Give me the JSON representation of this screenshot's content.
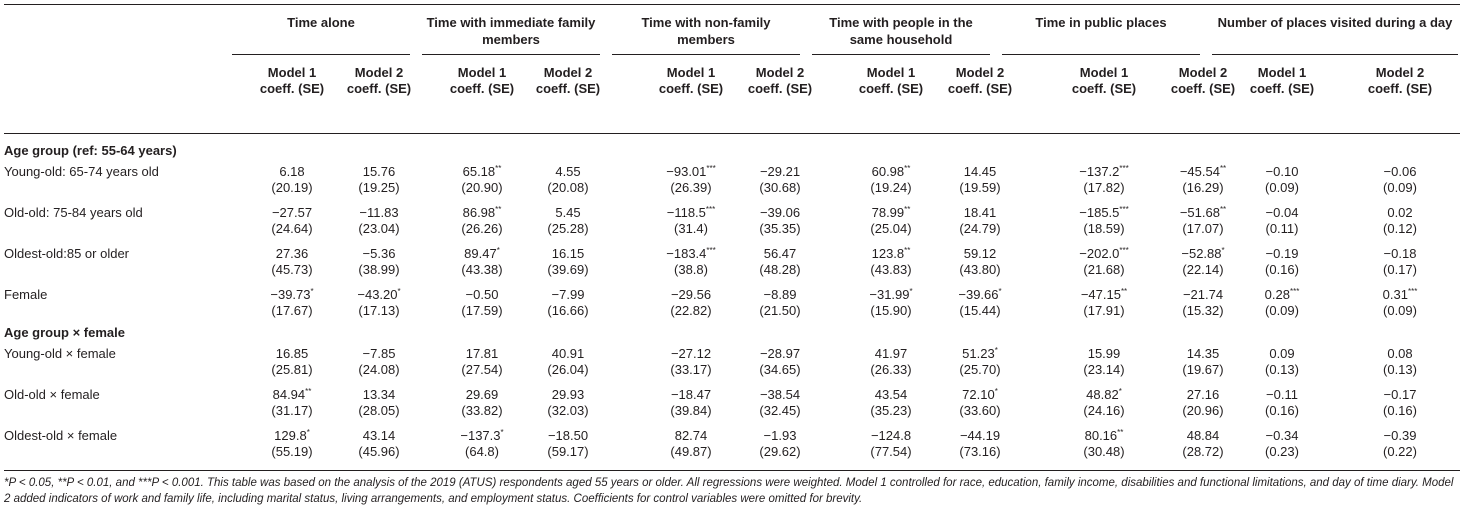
{
  "groups": [
    {
      "label": "Time alone"
    },
    {
      "label": "Time with immediate family members"
    },
    {
      "label": "Time with non-family members"
    },
    {
      "label": "Time with people in the same household"
    },
    {
      "label": "Time in public places"
    },
    {
      "label": "Number of places visited during a day"
    }
  ],
  "model_labels": [
    "Model 1 coeff. (SE)",
    "Model 2 coeff. (SE)"
  ],
  "sections": [
    {
      "title": "Age group (ref: 55-64 years)",
      "rows": [
        {
          "label": "Young-old: 65-74 years old",
          "cells": [
            {
              "c": "6.18",
              "s": "",
              "se": "(20.19)"
            },
            {
              "c": "15.76",
              "s": "",
              "se": "(19.25)"
            },
            {
              "c": "65.18",
              "s": "**",
              "se": "(20.90)"
            },
            {
              "c": "4.55",
              "s": "",
              "se": "(20.08)"
            },
            {
              "c": "−93.01",
              "s": "***",
              "se": "(26.39)"
            },
            {
              "c": "−29.21",
              "s": "",
              "se": "(30.68)"
            },
            {
              "c": "60.98",
              "s": "**",
              "se": "(19.24)"
            },
            {
              "c": "14.45",
              "s": "",
              "se": "(19.59)"
            },
            {
              "c": "−137.2",
              "s": "***",
              "se": "(17.82)"
            },
            {
              "c": "−45.54",
              "s": "**",
              "se": "(16.29)"
            },
            {
              "c": "−0.10",
              "s": "",
              "se": "(0.09)"
            },
            {
              "c": "−0.06",
              "s": "",
              "se": "(0.09)"
            }
          ]
        },
        {
          "label": "Old-old: 75-84 years old",
          "cells": [
            {
              "c": "−27.57",
              "s": "",
              "se": "(24.64)"
            },
            {
              "c": "−11.83",
              "s": "",
              "se": "(23.04)"
            },
            {
              "c": "86.98",
              "s": "**",
              "se": "(26.26)"
            },
            {
              "c": "5.45",
              "s": "",
              "se": "(25.28)"
            },
            {
              "c": "−118.5",
              "s": "***",
              "se": "(31.4)"
            },
            {
              "c": "−39.06",
              "s": "",
              "se": "(35.35)"
            },
            {
              "c": "78.99",
              "s": "**",
              "se": "(25.04)"
            },
            {
              "c": "18.41",
              "s": "",
              "se": "(24.79)"
            },
            {
              "c": "−185.5",
              "s": "***",
              "se": "(18.59)"
            },
            {
              "c": "−51.68",
              "s": "**",
              "se": "(17.07)"
            },
            {
              "c": "−0.04",
              "s": "",
              "se": "(0.11)"
            },
            {
              "c": "0.02",
              "s": "",
              "se": "(0.12)"
            }
          ]
        },
        {
          "label": "Oldest-old:85 or older",
          "cells": [
            {
              "c": "27.36",
              "s": "",
              "se": "(45.73)"
            },
            {
              "c": "−5.36",
              "s": "",
              "se": "(38.99)"
            },
            {
              "c": "89.47",
              "s": "*",
              "se": "(43.38)"
            },
            {
              "c": "16.15",
              "s": "",
              "se": "(39.69)"
            },
            {
              "c": "−183.4",
              "s": "***",
              "se": "(38.8)"
            },
            {
              "c": "56.47",
              "s": "",
              "se": "(48.28)"
            },
            {
              "c": "123.8",
              "s": "**",
              "se": "(43.83)"
            },
            {
              "c": "59.12",
              "s": "",
              "se": "(43.80)"
            },
            {
              "c": "−202.0",
              "s": "***",
              "se": "(21.68)"
            },
            {
              "c": "−52.88",
              "s": "*",
              "se": "(22.14)"
            },
            {
              "c": "−0.19",
              "s": "",
              "se": "(0.16)"
            },
            {
              "c": "−0.18",
              "s": "",
              "se": "(0.17)"
            }
          ]
        },
        {
          "label": "Female",
          "cells": [
            {
              "c": "−39.73",
              "s": "*",
              "se": "(17.67)"
            },
            {
              "c": "−43.20",
              "s": "*",
              "se": "(17.13)"
            },
            {
              "c": "−0.50",
              "s": "",
              "se": "(17.59)"
            },
            {
              "c": "−7.99",
              "s": "",
              "se": "(16.66)"
            },
            {
              "c": "−29.56",
              "s": "",
              "se": "(22.82)"
            },
            {
              "c": "−8.89",
              "s": "",
              "se": "(21.50)"
            },
            {
              "c": "−31.99",
              "s": "*",
              "se": "(15.90)"
            },
            {
              "c": "−39.66",
              "s": "*",
              "se": "(15.44)"
            },
            {
              "c": "−47.15",
              "s": "**",
              "se": "(17.91)"
            },
            {
              "c": "−21.74",
              "s": "",
              "se": "(15.32)"
            },
            {
              "c": "0.28",
              "s": "***",
              "se": "(0.09)"
            },
            {
              "c": "0.31",
              "s": "***",
              "se": "(0.09)"
            }
          ]
        }
      ]
    },
    {
      "title": "Age group × female",
      "rows": [
        {
          "label": "Young-old × female",
          "cells": [
            {
              "c": "16.85",
              "s": "",
              "se": "(25.81)"
            },
            {
              "c": "−7.85",
              "s": "",
              "se": "(24.08)"
            },
            {
              "c": "17.81",
              "s": "",
              "se": "(27.54)"
            },
            {
              "c": "40.91",
              "s": "",
              "se": "(26.04)"
            },
            {
              "c": "−27.12",
              "s": "",
              "se": "(33.17)"
            },
            {
              "c": "−28.97",
              "s": "",
              "se": "(34.65)"
            },
            {
              "c": "41.97",
              "s": "",
              "se": "(26.33)"
            },
            {
              "c": "51.23",
              "s": "*",
              "se": "(25.70)"
            },
            {
              "c": "15.99",
              "s": "",
              "se": "(23.14)"
            },
            {
              "c": "14.35",
              "s": "",
              "se": "(19.67)"
            },
            {
              "c": "0.09",
              "s": "",
              "se": "(0.13)"
            },
            {
              "c": "0.08",
              "s": "",
              "se": "(0.13)"
            }
          ]
        },
        {
          "label": "Old-old × female",
          "cells": [
            {
              "c": "84.94",
              "s": "**",
              "se": "(31.17)"
            },
            {
              "c": "13.34",
              "s": "",
              "se": "(28.05)"
            },
            {
              "c": "29.69",
              "s": "",
              "se": "(33.82)"
            },
            {
              "c": "29.93",
              "s": "",
              "se": "(32.03)"
            },
            {
              "c": "−18.47",
              "s": "",
              "se": "(39.84)"
            },
            {
              "c": "−38.54",
              "s": "",
              "se": "(32.45)"
            },
            {
              "c": "43.54",
              "s": "",
              "se": "(35.23)"
            },
            {
              "c": "72.10",
              "s": "*",
              "se": "(33.60)"
            },
            {
              "c": "48.82",
              "s": "*",
              "se": "(24.16)"
            },
            {
              "c": "27.16",
              "s": "",
              "se": "(20.96)"
            },
            {
              "c": "−0.11",
              "s": "",
              "se": "(0.16)"
            },
            {
              "c": "−0.17",
              "s": "",
              "se": "(0.16)"
            }
          ]
        },
        {
          "label": "Oldest-old × female",
          "cells": [
            {
              "c": "129.8",
              "s": "*",
              "se": "(55.19)"
            },
            {
              "c": "43.14",
              "s": "",
              "se": "(45.96)"
            },
            {
              "c": "−137.3",
              "s": "*",
              "se": "(64.8)"
            },
            {
              "c": "−18.50",
              "s": "",
              "se": "(59.17)"
            },
            {
              "c": "82.74",
              "s": "",
              "se": "(49.87)"
            },
            {
              "c": "−1.93",
              "s": "",
              "se": "(29.62)"
            },
            {
              "c": "−124.8",
              "s": "",
              "se": "(77.54)"
            },
            {
              "c": "−44.19",
              "s": "",
              "se": "(73.16)"
            },
            {
              "c": "80.16",
              "s": "**",
              "se": "(30.48)"
            },
            {
              "c": "48.84",
              "s": "",
              "se": "(28.72)"
            },
            {
              "c": "−0.34",
              "s": "",
              "se": "(0.23)"
            },
            {
              "c": "−0.39",
              "s": "",
              "se": "(0.22)"
            }
          ]
        }
      ]
    }
  ],
  "footnote": "*P < 0.05, **P < 0.01, and ***P < 0.001. This table was based on the analysis of the 2019 (ATUS) respondents aged 55 years or older. All regressions were weighted. Model 1 controlled for race, education, family income, disabilities and functional limitations, and day of time diary. Model 2 added indicators of work and family life, including marital status, living arrangements, and employment status. Coefficients for control variables were omitted for brevity."
}
